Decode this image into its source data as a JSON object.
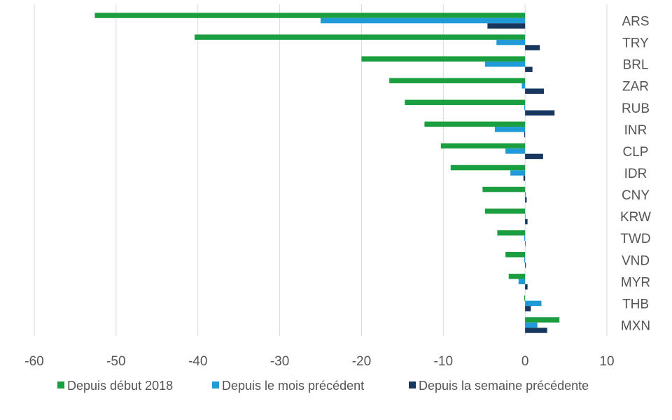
{
  "chart_data": {
    "type": "bar",
    "orientation": "horizontal",
    "categories": [
      "ARS",
      "TRY",
      "BRL",
      "ZAR",
      "RUB",
      "INR",
      "CLP",
      "IDR",
      "CNY",
      "KRW",
      "TWD",
      "VND",
      "MYR",
      "THB",
      "MXN"
    ],
    "series": [
      {
        "name": "Depuis début 2018",
        "color": "#1a9e3f",
        "values": [
          -52.6,
          -40.4,
          -20.0,
          -16.6,
          -14.7,
          -12.3,
          -10.3,
          -9.1,
          -5.2,
          -4.9,
          -3.4,
          -2.4,
          -2.0,
          -0.1,
          4.2
        ]
      },
      {
        "name": "Depuis le mois précédent",
        "color": "#1f9bd7",
        "values": [
          -25.0,
          -3.5,
          -4.9,
          -0.4,
          -0.1,
          -3.7,
          -2.4,
          -1.8,
          0.1,
          0.0,
          -0.1,
          -0.1,
          -0.8,
          2.0,
          1.5
        ]
      },
      {
        "name": "Depuis la semaine précédente",
        "color": "#17375e",
        "values": [
          -4.6,
          1.8,
          0.9,
          2.3,
          3.6,
          -0.1,
          2.2,
          -0.2,
          0.2,
          0.3,
          0.0,
          0.1,
          0.3,
          0.7,
          2.7
        ]
      }
    ],
    "xlim": [
      -60,
      10
    ],
    "xticks": [
      -60,
      -50,
      -40,
      -30,
      -20,
      -10,
      0,
      10
    ],
    "grid": true,
    "legend_position": "bottom"
  }
}
